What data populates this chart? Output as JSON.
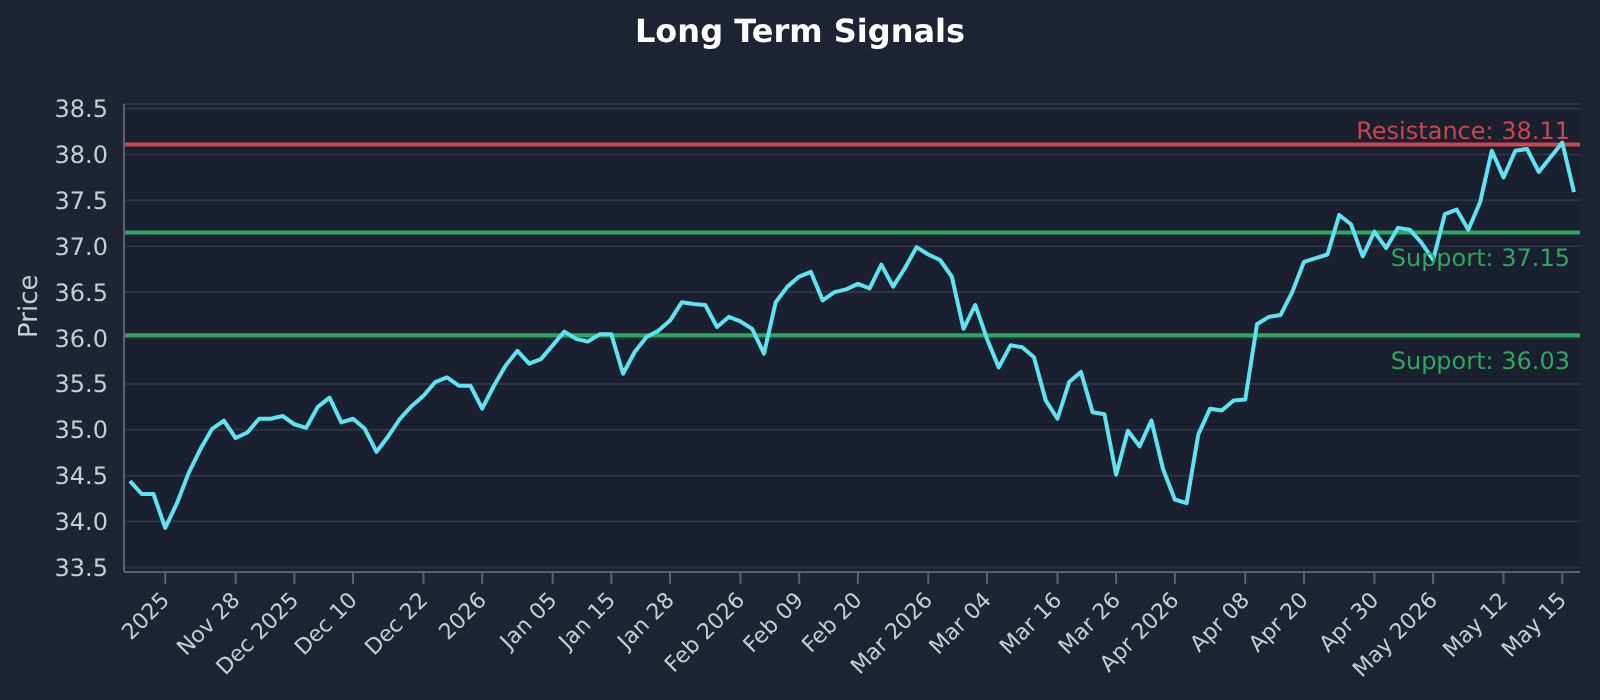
{
  "chart_data": {
    "type": "line",
    "title": "Long Term Signals",
    "ylabel": "Price",
    "categories": [
      null,
      null,
      null,
      "2025",
      null,
      null,
      null,
      null,
      null,
      "Nov 28",
      null,
      null,
      null,
      null,
      "Dec 2025",
      null,
      null,
      null,
      null,
      "Dec 10",
      null,
      null,
      null,
      null,
      null,
      "Dec 22",
      null,
      null,
      null,
      null,
      "2026",
      null,
      null,
      null,
      null,
      null,
      "Jan 05",
      null,
      null,
      null,
      null,
      "Jan 15",
      null,
      null,
      null,
      null,
      "Jan 28",
      null,
      null,
      null,
      null,
      null,
      "Feb 2026",
      null,
      null,
      null,
      null,
      "Feb 09",
      null,
      null,
      null,
      null,
      "Feb 20",
      null,
      null,
      null,
      null,
      null,
      "Mar 2026",
      null,
      null,
      null,
      null,
      "Mar 04",
      null,
      null,
      null,
      null,
      null,
      "Mar 16",
      null,
      null,
      null,
      null,
      "Mar 26",
      null,
      null,
      null,
      null,
      "Apr 2026",
      null,
      null,
      null,
      null,
      null,
      "Apr 08",
      null,
      null,
      null,
      null,
      "Apr 20",
      null,
      null,
      null,
      null,
      null,
      "Apr 30",
      null,
      null,
      null,
      null,
      "May 2026",
      null,
      null,
      null,
      null,
      null,
      "May 12",
      null,
      null,
      null,
      null,
      "May 15",
      null
    ],
    "series": [
      {
        "color": "#5ee3f2",
        "values": [
          34.44,
          34.3,
          34.3,
          33.93,
          34.2,
          34.53,
          34.79,
          35.01,
          35.1,
          34.91,
          34.97,
          35.12,
          35.12,
          35.15,
          35.06,
          35.02,
          35.25,
          35.35,
          35.08,
          35.12,
          35.01,
          34.76,
          34.93,
          35.12,
          35.26,
          35.37,
          35.52,
          35.57,
          35.48,
          35.48,
          35.23,
          35.48,
          35.7,
          35.86,
          35.72,
          35.77,
          35.92,
          36.07,
          35.99,
          35.96,
          36.04,
          36.04,
          35.61,
          35.85,
          36.01,
          36.08,
          36.19,
          36.39,
          36.37,
          36.36,
          36.12,
          36.23,
          36.18,
          36.1,
          35.83,
          36.39,
          36.56,
          36.67,
          36.72,
          36.41,
          36.5,
          36.53,
          36.59,
          36.54,
          36.8,
          36.56,
          36.76,
          36.99,
          36.91,
          36.85,
          36.67,
          36.1,
          36.36,
          35.99,
          35.68,
          35.92,
          35.9,
          35.79,
          35.32,
          35.12,
          35.52,
          35.63,
          35.19,
          35.17,
          34.51,
          34.99,
          34.82,
          35.1,
          34.57,
          34.24,
          34.2,
          34.95,
          35.23,
          35.21,
          35.32,
          35.33,
          36.15,
          36.23,
          36.25,
          36.5,
          36.83,
          36.87,
          36.91,
          37.34,
          37.24,
          36.89,
          37.16,
          36.98,
          37.2,
          37.18,
          37.04,
          36.85,
          37.35,
          37.4,
          37.18,
          37.48,
          38.04,
          37.75,
          38.04,
          38.06,
          37.81,
          37.97,
          38.13,
          37.59
        ]
      }
    ],
    "ylim": [
      33.45,
      38.55
    ],
    "yticks": [
      33.5,
      {
        "value": 34,
        "label": "34.0"
      },
      34.5,
      {
        "value": 35,
        "label": "35.0"
      },
      35.5,
      {
        "value": 36,
        "label": "36.0"
      },
      36.5,
      {
        "value": 37,
        "label": "37.0"
      },
      37.5,
      {
        "value": 38,
        "label": "38.0"
      },
      38.5
    ],
    "grid": "y",
    "marker": "none",
    "line_style": "solid",
    "ref_lines": [
      {
        "axis": "y",
        "value": 38.11,
        "label": "Resistance: 38.11",
        "color": "#c9474f"
      },
      {
        "axis": "y",
        "value": 37.15,
        "label": "Support: 37.15",
        "color": "#2fa75e"
      },
      {
        "axis": "y",
        "value": 36.03,
        "label": "Support: 36.03",
        "color": "#2fa75e"
      }
    ]
  }
}
